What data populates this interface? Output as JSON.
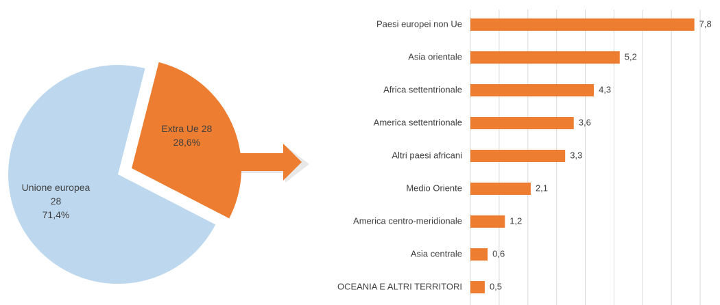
{
  "chart_data": [
    {
      "type": "pie",
      "categories": [
        "Unione europea 28",
        "Extra Ue 28"
      ],
      "values": [
        71.4,
        28.6
      ],
      "value_labels": [
        "71,4%",
        "28,6%"
      ],
      "colors": [
        "#bdd7ee",
        "#ed7d31"
      ]
    },
    {
      "type": "barh",
      "categories": [
        "Paesi europei non Ue",
        "Asia orientale",
        "Africa settentrionale",
        "America settentrionale",
        "Altri paesi africani",
        "Medio Oriente",
        "America centro-meridionale",
        "Asia centrale",
        "OCEANIA E ALTRI TERRITORI"
      ],
      "values": [
        7.8,
        5.2,
        4.3,
        3.6,
        3.3,
        2.1,
        1.2,
        0.6,
        0.5
      ],
      "value_labels": [
        "7,8",
        "5,2",
        "4,3",
        "3,6",
        "3,3",
        "2,1",
        "1,2",
        "0,6",
        "0,5"
      ],
      "color": "#ed7d31",
      "xlim": [
        0,
        8
      ],
      "xticks": [
        0,
        1,
        2,
        3,
        4,
        5,
        6,
        7,
        8
      ],
      "grid": true
    }
  ]
}
